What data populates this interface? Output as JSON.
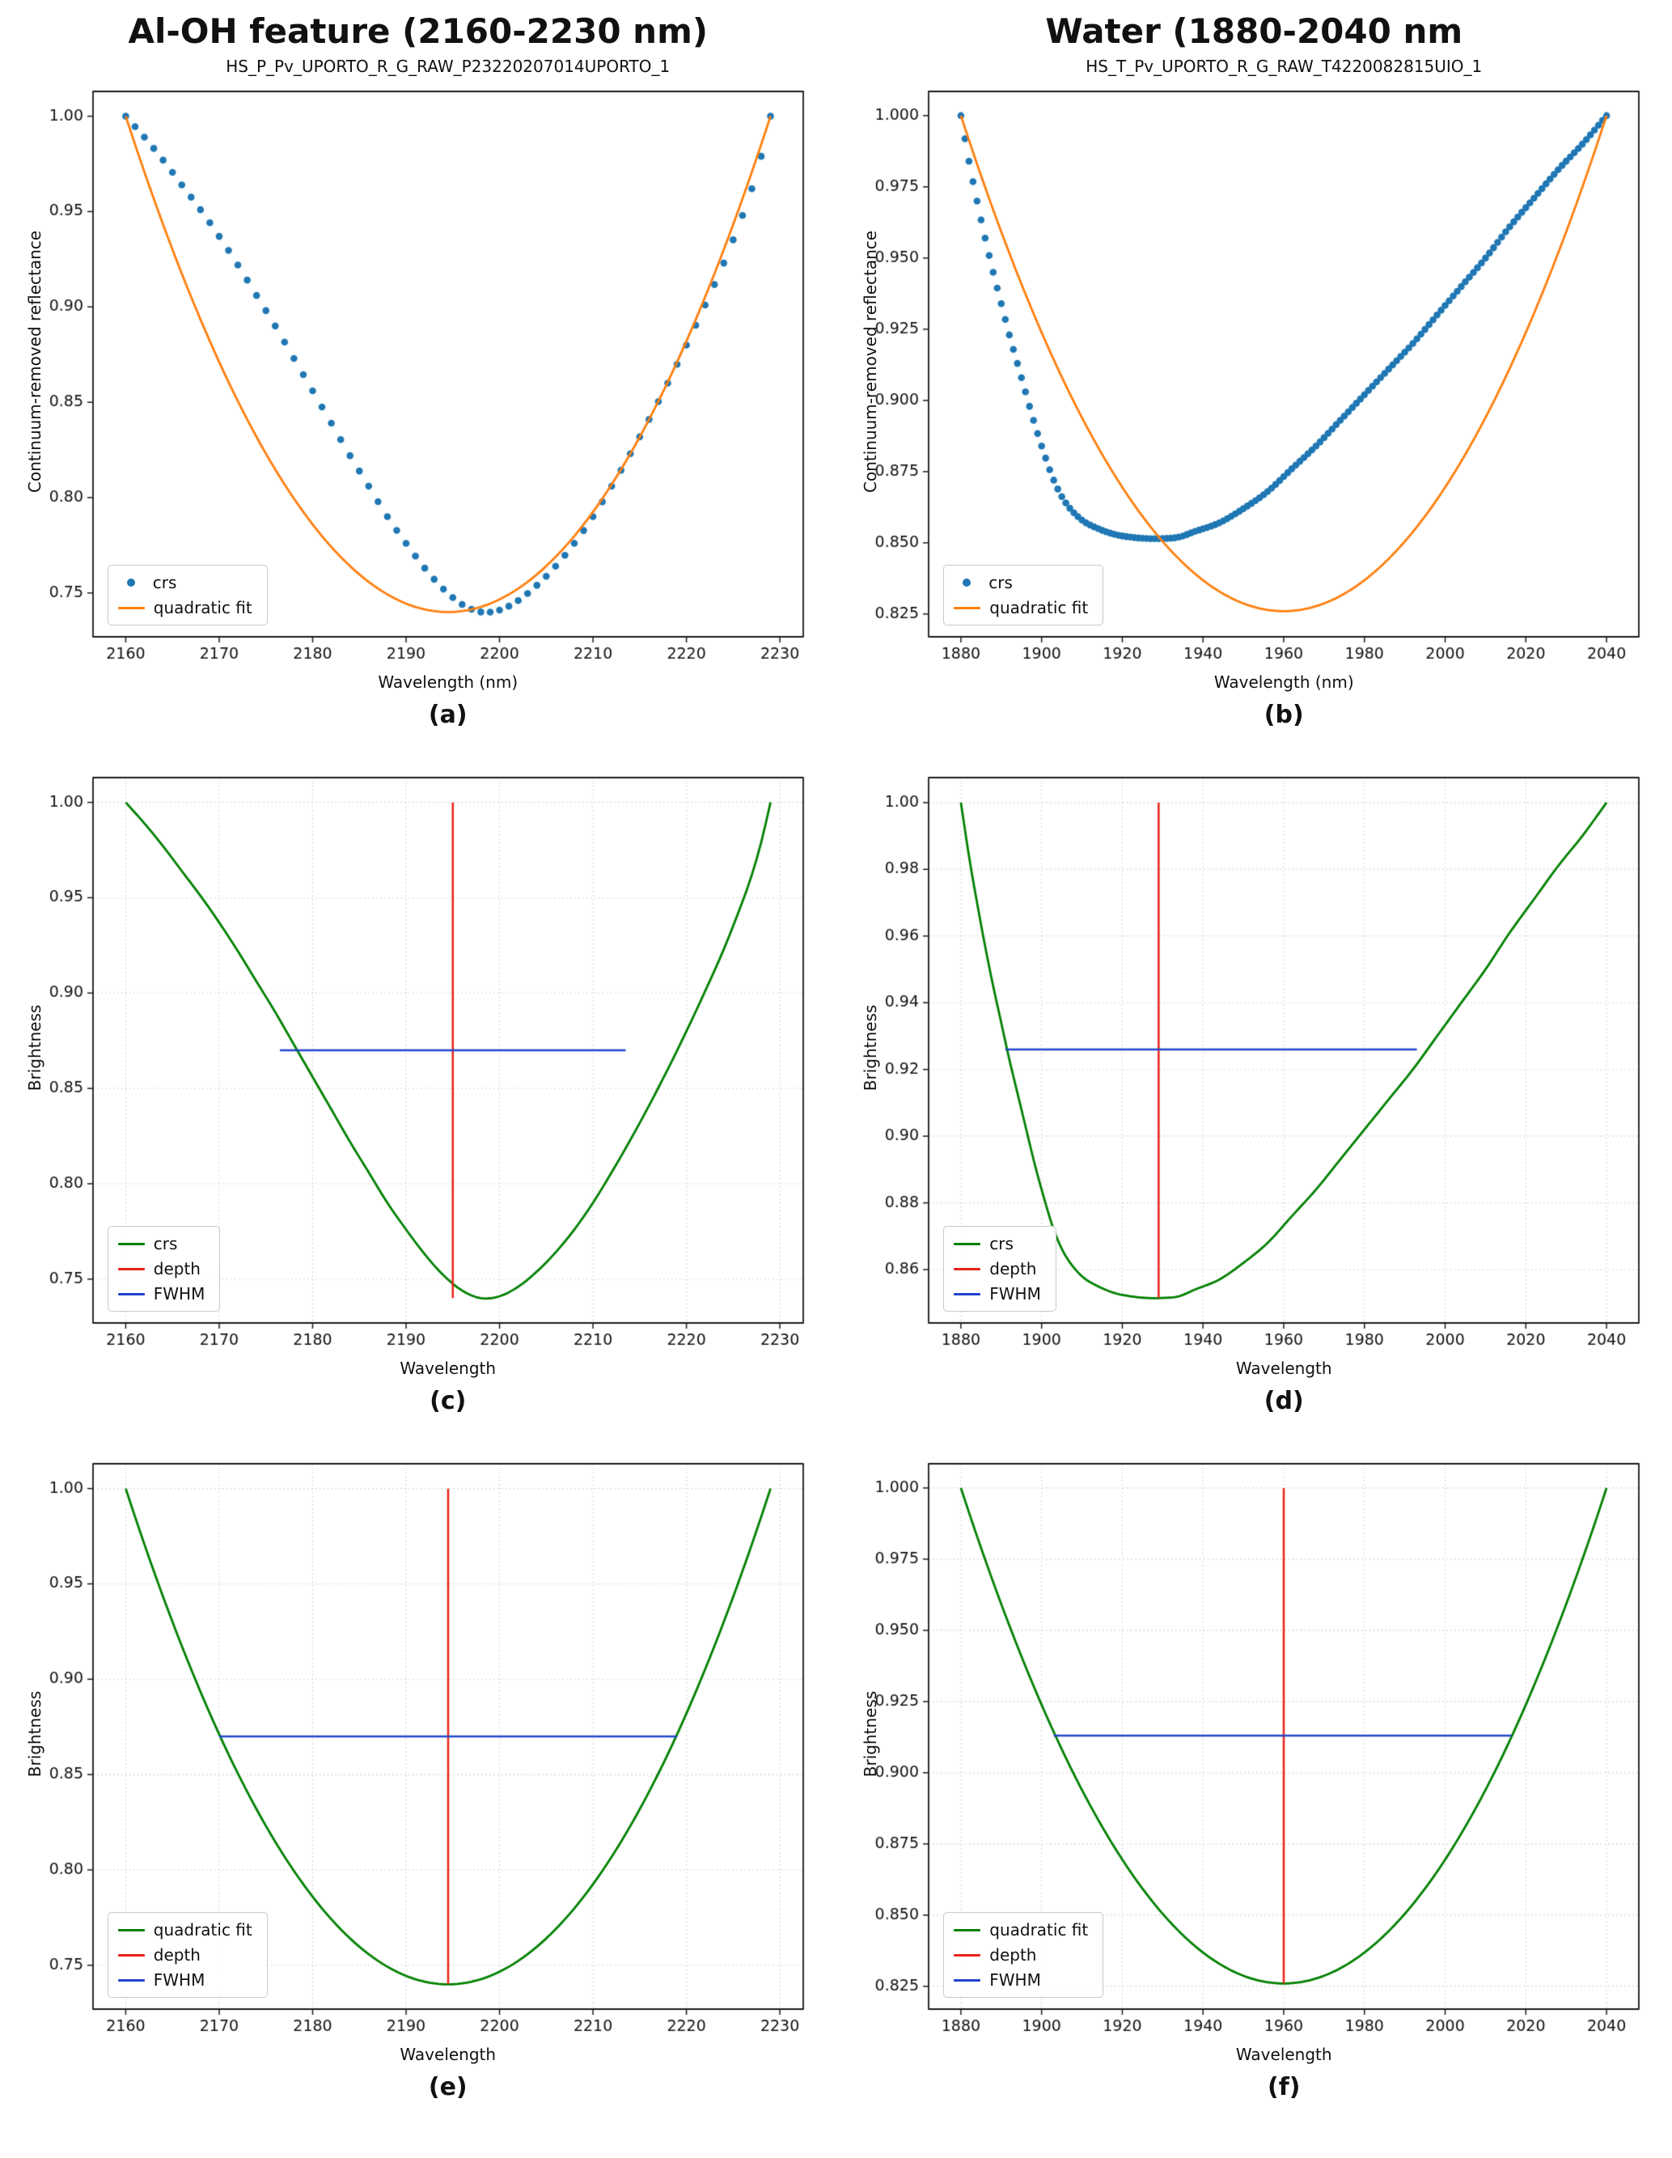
{
  "page": {
    "left_title": "Al-OH feature (2160-2230 nm)",
    "right_title": "Water (1880-2040 nm"
  },
  "colors": {
    "crs_dots": "#1f77b4",
    "quadratic_fit": "#ff7f0e",
    "crs_line": "#008000",
    "depth": "#e8231a",
    "fwhm": "#2244cc"
  },
  "curves": {
    "aloh_crs": {
      "x": [
        2160,
        2162,
        2164,
        2166,
        2168,
        2170,
        2172,
        2174,
        2176,
        2178,
        2180,
        2182,
        2184,
        2186,
        2188,
        2190,
        2192,
        2194,
        2196,
        2198,
        2200,
        2202,
        2204,
        2206,
        2208,
        2210,
        2212,
        2214,
        2216,
        2218,
        2220,
        2222,
        2224,
        2226,
        2227,
        2228,
        2229
      ],
      "y": [
        1.0,
        0.989,
        0.977,
        0.964,
        0.951,
        0.937,
        0.922,
        0.906,
        0.89,
        0.873,
        0.856,
        0.839,
        0.822,
        0.806,
        0.79,
        0.776,
        0.763,
        0.752,
        0.744,
        0.74,
        0.741,
        0.746,
        0.754,
        0.764,
        0.776,
        0.79,
        0.806,
        0.823,
        0.841,
        0.86,
        0.88,
        0.901,
        0.923,
        0.948,
        0.962,
        0.979,
        1.0
      ]
    },
    "water_crs": {
      "x": [
        1880,
        1882,
        1884,
        1886,
        1888,
        1890,
        1892,
        1894,
        1896,
        1898,
        1900,
        1903,
        1906,
        1910,
        1914,
        1918,
        1922,
        1926,
        1930,
        1934,
        1938,
        1944,
        1950,
        1956,
        1962,
        1968,
        1974,
        1980,
        1986,
        1992,
        1998,
        2004,
        2010,
        2016,
        2022,
        2028,
        2034,
        2040
      ],
      "y": [
        1.0,
        0.984,
        0.97,
        0.957,
        0.945,
        0.934,
        0.923,
        0.913,
        0.903,
        0.893,
        0.884,
        0.872,
        0.864,
        0.858,
        0.855,
        0.853,
        0.852,
        0.8515,
        0.8515,
        0.852,
        0.854,
        0.857,
        0.862,
        0.868,
        0.876,
        0.884,
        0.893,
        0.902,
        0.911,
        0.92,
        0.93,
        0.94,
        0.95,
        0.961,
        0.971,
        0.981,
        0.99,
        1.0
      ]
    },
    "aloh_fit": {
      "vertex": [
        2194.5,
        0.74
      ],
      "through": [
        2160,
        1.0
      ],
      "range": [
        2160,
        2229
      ]
    },
    "water_fit": {
      "vertex": [
        1960,
        0.826
      ],
      "through": [
        1880,
        1.0
      ],
      "range": [
        1880,
        2040
      ]
    }
  },
  "chart_data": [
    {
      "id": "a",
      "type": "scatter+line",
      "caption": "(a)",
      "title": "HS_P_Pv_UPORTO_R_G_RAW_P23220207014UPORTO_1",
      "xlabel": "Wavelength (nm)",
      "ylabel": "Continuum-removed reflectance",
      "xlim": [
        2156.5,
        2232.5
      ],
      "ylim": [
        0.727,
        1.013
      ],
      "xticks": [
        2160,
        2170,
        2180,
        2190,
        2200,
        2210,
        2220,
        2230
      ],
      "yticks": [
        0.75,
        0.8,
        0.85,
        0.9,
        0.95,
        1.0
      ],
      "ydecimals": 2,
      "grid": false,
      "series": [
        {
          "name": "crs",
          "type": "scatter",
          "ref": "aloh_crs",
          "color_key": "crs_dots",
          "step": 1
        },
        {
          "name": "quadratic fit",
          "type": "parabola",
          "ref": "aloh_fit",
          "color_key": "quadratic_fit"
        }
      ],
      "legend": [
        {
          "label": "crs",
          "marker": "dot",
          "color_key": "crs_dots"
        },
        {
          "label": "quadratic fit",
          "marker": "line",
          "color_key": "quadratic_fit"
        }
      ]
    },
    {
      "id": "b",
      "type": "scatter+line",
      "caption": "(b)",
      "title": "HS_T_Pv_UPORTO_R_G_RAW_T4220082815UIO_1",
      "xlabel": "Wavelength (nm)",
      "ylabel": "Continuum-removed reflectance",
      "xlim": [
        1872,
        2048
      ],
      "ylim": [
        0.817,
        1.0085
      ],
      "xticks": [
        1880,
        1900,
        1920,
        1940,
        1960,
        1980,
        2000,
        2020,
        2040
      ],
      "yticks": [
        0.825,
        0.85,
        0.875,
        0.9,
        0.925,
        0.95,
        0.975,
        1.0
      ],
      "ydecimals": 3,
      "grid": false,
      "series": [
        {
          "name": "crs",
          "type": "scatter",
          "ref": "water_crs",
          "color_key": "crs_dots",
          "step": 1
        },
        {
          "name": "quadratic fit",
          "type": "parabola",
          "ref": "water_fit",
          "color_key": "quadratic_fit"
        }
      ],
      "legend": [
        {
          "label": "crs",
          "marker": "dot",
          "color_key": "crs_dots"
        },
        {
          "label": "quadratic fit",
          "marker": "line",
          "color_key": "quadratic_fit"
        }
      ]
    },
    {
      "id": "c",
      "type": "line",
      "caption": "(c)",
      "title": "",
      "xlabel": "Wavelength",
      "ylabel": "Brightness",
      "xlim": [
        2156.5,
        2232.5
      ],
      "ylim": [
        0.727,
        1.013
      ],
      "xticks": [
        2160,
        2170,
        2180,
        2190,
        2200,
        2210,
        2220,
        2230
      ],
      "yticks": [
        0.75,
        0.8,
        0.85,
        0.9,
        0.95,
        1.0
      ],
      "ydecimals": 2,
      "grid": true,
      "series": [
        {
          "name": "crs",
          "type": "line",
          "ref": "aloh_crs",
          "color_key": "crs_line"
        },
        {
          "name": "depth",
          "type": "vline",
          "x": 2195,
          "y_from": 0.74,
          "y_to": 1.0,
          "color_key": "depth"
        },
        {
          "name": "FWHM",
          "type": "hline",
          "y": 0.87,
          "x_from": 2176.5,
          "x_to": 2213.5,
          "color_key": "fwhm"
        }
      ],
      "legend": [
        {
          "label": "crs",
          "marker": "line",
          "color_key": "crs_line"
        },
        {
          "label": "depth",
          "marker": "line",
          "color_key": "depth"
        },
        {
          "label": "FWHM",
          "marker": "line",
          "color_key": "fwhm"
        }
      ]
    },
    {
      "id": "d",
      "type": "line",
      "caption": "(d)",
      "title": "",
      "xlabel": "Wavelength",
      "ylabel": "Brightness",
      "xlim": [
        1872,
        2048
      ],
      "ylim": [
        0.844,
        1.0075
      ],
      "xticks": [
        1880,
        1900,
        1920,
        1940,
        1960,
        1980,
        2000,
        2020,
        2040
      ],
      "yticks": [
        0.86,
        0.88,
        0.9,
        0.92,
        0.94,
        0.96,
        0.98,
        1.0
      ],
      "ydecimals": 2,
      "grid": true,
      "series": [
        {
          "name": "crs",
          "type": "line",
          "ref": "water_crs",
          "color_key": "crs_line"
        },
        {
          "name": "depth",
          "type": "vline",
          "x": 1929,
          "y_from": 0.8515,
          "y_to": 1.0,
          "color_key": "depth"
        },
        {
          "name": "FWHM",
          "type": "hline",
          "y": 0.926,
          "x_from": 1891,
          "x_to": 1993,
          "color_key": "fwhm"
        }
      ],
      "legend": [
        {
          "label": "crs",
          "marker": "line",
          "color_key": "crs_line"
        },
        {
          "label": "depth",
          "marker": "line",
          "color_key": "depth"
        },
        {
          "label": "FWHM",
          "marker": "line",
          "color_key": "fwhm"
        }
      ]
    },
    {
      "id": "e",
      "type": "line",
      "caption": "(e)",
      "title": "",
      "xlabel": "Wavelength",
      "ylabel": "Brightness",
      "xlim": [
        2156.5,
        2232.5
      ],
      "ylim": [
        0.727,
        1.013
      ],
      "xticks": [
        2160,
        2170,
        2180,
        2190,
        2200,
        2210,
        2220,
        2230
      ],
      "yticks": [
        0.75,
        0.8,
        0.85,
        0.9,
        0.95,
        1.0
      ],
      "ydecimals": 2,
      "grid": true,
      "series": [
        {
          "name": "quadratic fit",
          "type": "parabola",
          "ref": "aloh_fit",
          "color_key": "crs_line"
        },
        {
          "name": "depth",
          "type": "vline",
          "x": 2194.5,
          "y_from": 0.74,
          "y_to": 1.0,
          "color_key": "depth"
        },
        {
          "name": "FWHM",
          "type": "hline",
          "y": 0.87,
          "x_from": 2170,
          "x_to": 2219,
          "color_key": "fwhm"
        }
      ],
      "legend": [
        {
          "label": "quadratic fit",
          "marker": "line",
          "color_key": "crs_line"
        },
        {
          "label": "depth",
          "marker": "line",
          "color_key": "depth"
        },
        {
          "label": "FWHM",
          "marker": "line",
          "color_key": "fwhm"
        }
      ]
    },
    {
      "id": "f",
      "type": "line",
      "caption": "(f)",
      "title": "",
      "xlabel": "Wavelength",
      "ylabel": "Brightness",
      "xlim": [
        1872,
        2048
      ],
      "ylim": [
        0.817,
        1.0085
      ],
      "xticks": [
        1880,
        1900,
        1920,
        1940,
        1960,
        1980,
        2000,
        2020,
        2040
      ],
      "yticks": [
        0.825,
        0.85,
        0.875,
        0.9,
        0.925,
        0.95,
        0.975,
        1.0
      ],
      "ydecimals": 3,
      "grid": true,
      "series": [
        {
          "name": "quadratic fit",
          "type": "parabola",
          "ref": "water_fit",
          "color_key": "crs_line"
        },
        {
          "name": "depth",
          "type": "vline",
          "x": 1960,
          "y_from": 0.826,
          "y_to": 1.0,
          "color_key": "depth"
        },
        {
          "name": "FWHM",
          "type": "hline",
          "y": 0.913,
          "x_from": 1903,
          "x_to": 2016.5,
          "color_key": "fwhm"
        }
      ],
      "legend": [
        {
          "label": "quadratic fit",
          "marker": "line",
          "color_key": "crs_line"
        },
        {
          "label": "depth",
          "marker": "line",
          "color_key": "depth"
        },
        {
          "label": "FWHM",
          "marker": "line",
          "color_key": "fwhm"
        }
      ]
    }
  ]
}
